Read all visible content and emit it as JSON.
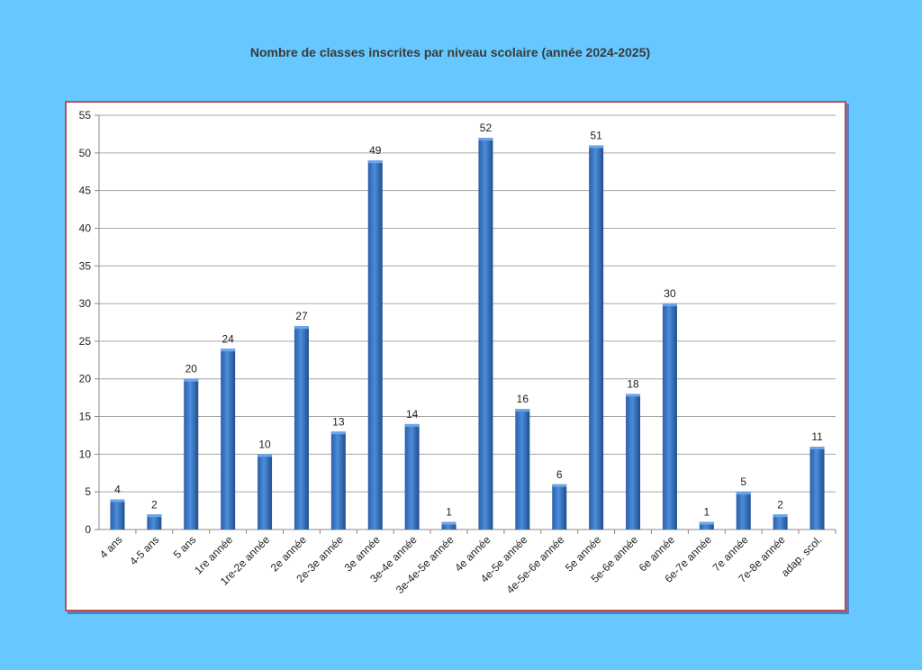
{
  "chart_data": {
    "type": "bar",
    "title": "Nombre de classes inscrites par niveau scolaire (année 2024-2025)",
    "xlabel": "",
    "ylabel": "",
    "ylim": [
      0,
      55
    ],
    "yticks": [
      0,
      5,
      10,
      15,
      20,
      25,
      30,
      35,
      40,
      45,
      50,
      55
    ],
    "grid": true,
    "legend": "none",
    "categories": [
      "4 ans",
      "4-5 ans",
      "5 ans",
      "1re année",
      "1re-2e année",
      "2e année",
      "2e-3e année",
      "3e année",
      "3e-4e année",
      "3e-4e-5e année",
      "4e année",
      "4e-5e année",
      "4e-5e-6e année",
      "5e année",
      "5e-6e année",
      "6e année",
      "6e-7e année",
      "7e année",
      "7e-8e année",
      "adap. scol."
    ],
    "values": [
      4,
      2,
      20,
      24,
      10,
      27,
      13,
      49,
      14,
      1,
      52,
      16,
      6,
      51,
      18,
      30,
      1,
      5,
      2,
      11
    ],
    "colors": {
      "bar": "#3a78c8",
      "bar_light": "#6aa4ea",
      "bar_dark": "#245a9a",
      "grid": "#a6a6a6",
      "frame": "#c0504d"
    }
  }
}
